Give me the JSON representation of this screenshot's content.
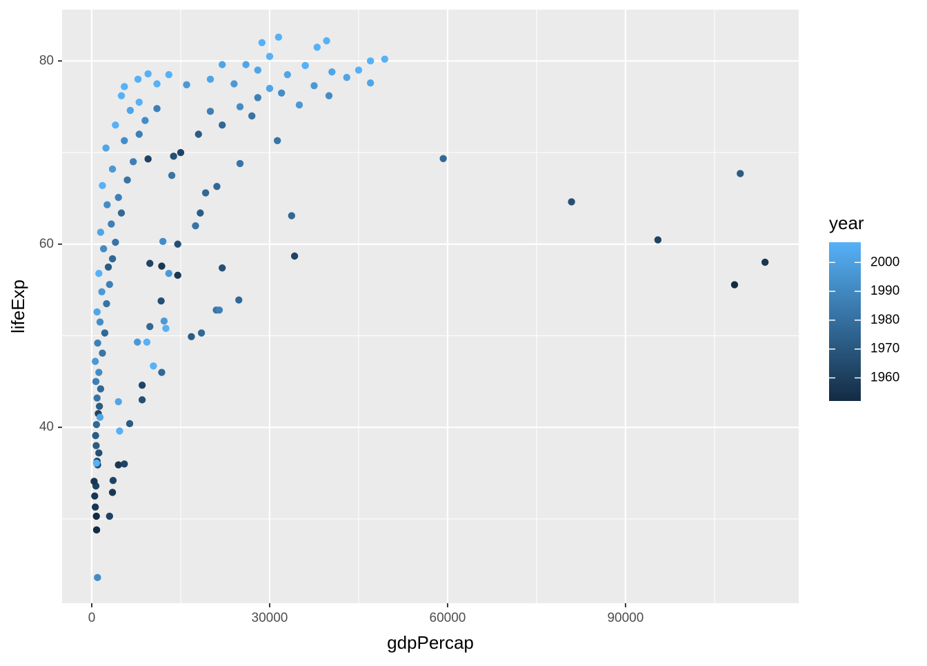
{
  "chart_data": {
    "type": "scatter",
    "x_label": "gdpPercap",
    "y_label": "lifeExp",
    "xlim": [
      -5000,
      119200
    ],
    "ylim": [
      20.8,
      85.6
    ],
    "xticks": [
      0,
      30000,
      60000,
      90000
    ],
    "yticks": [
      40,
      60,
      80
    ],
    "x_minor_grid": [
      15000,
      45000,
      75000,
      105000
    ],
    "y_minor_grid": [
      30,
      50,
      70
    ],
    "grid": true,
    "legend_title": "year",
    "color_low": "#132B43",
    "color_high": "#56B1F7",
    "color_lim": [
      1952,
      2007
    ],
    "color_ticks": [
      1960,
      1970,
      1980,
      1990,
      2000
    ],
    "x": [
      820,
      780,
      600,
      500,
      700,
      400,
      1000,
      900,
      1200,
      750,
      650,
      800,
      1100,
      1300,
      900,
      1500,
      700,
      1200,
      600,
      1800,
      1000,
      2200,
      1400,
      900,
      2500,
      1700,
      3000,
      1200,
      2800,
      3500,
      2000,
      4000,
      1500,
      3300,
      5000,
      2600,
      4500,
      1800,
      6000,
      3500,
      7000,
      2400,
      5500,
      8000,
      4000,
      9000,
      6500,
      11000,
      8000,
      5000,
      3000,
      3500,
      3600,
      4500,
      5500,
      6400,
      8500,
      8500,
      11800,
      10400,
      9300,
      7700,
      16800,
      18500,
      12500,
      9800,
      12200,
      21000,
      21500,
      24800,
      11700,
      14500,
      13000,
      22000,
      9800,
      11800,
      34200,
      14500,
      12000,
      17500,
      33700,
      18300,
      21100,
      19200,
      25000,
      13500,
      31300,
      9500,
      13800,
      15000,
      18000,
      22000,
      27000,
      20000,
      25000,
      28000,
      32000,
      35000,
      30000,
      24000,
      20000,
      33000,
      28000,
      36000,
      30000,
      38000,
      31500,
      39600,
      28700,
      47000,
      49400,
      45000,
      43000,
      40500,
      37500,
      40000,
      47000,
      26000,
      22000,
      16000,
      11000,
      9500,
      13000,
      7800,
      5500,
      59265,
      80895,
      95458,
      108382,
      109348,
      113523,
      974,
      1400,
      4500,
      4700,
      800
    ],
    "values": [
      28.8,
      30.3,
      31.3,
      32.5,
      33.6,
      34.1,
      35.9,
      36.3,
      37.2,
      38.0,
      39.1,
      40.3,
      41.5,
      42.3,
      43.2,
      44.2,
      45.0,
      46.0,
      47.2,
      48.1,
      49.2,
      50.3,
      51.5,
      52.6,
      53.5,
      54.8,
      55.6,
      56.8,
      57.5,
      58.4,
      59.5,
      60.2,
      61.3,
      62.2,
      63.4,
      64.3,
      65.1,
      66.4,
      67.0,
      68.2,
      69.0,
      70.5,
      71.3,
      72.0,
      73.0,
      73.5,
      74.6,
      74.8,
      75.5,
      76.2,
      30.3,
      32.9,
      34.2,
      35.9,
      36.0,
      40.4,
      43.0,
      44.6,
      46.0,
      46.7,
      49.3,
      49.3,
      49.9,
      50.3,
      50.8,
      51.0,
      51.6,
      52.8,
      52.8,
      53.9,
      53.8,
      56.6,
      56.8,
      57.4,
      57.9,
      57.6,
      58.7,
      60.0,
      60.3,
      62.0,
      63.1,
      63.4,
      66.3,
      65.6,
      68.8,
      67.5,
      71.3,
      69.3,
      69.6,
      70.0,
      72.0,
      73.0,
      74.0,
      74.5,
      75.0,
      76.0,
      76.5,
      75.2,
      77.0,
      77.5,
      78.0,
      78.5,
      79.0,
      79.5,
      80.5,
      81.5,
      82.6,
      82.2,
      82.0,
      80.0,
      80.2,
      79.0,
      78.2,
      78.8,
      77.3,
      76.2,
      77.6,
      79.6,
      79.6,
      77.4,
      77.5,
      78.6,
      78.5,
      78.0,
      77.2,
      69.34,
      64.62,
      60.47,
      55.57,
      67.71,
      58.03,
      23.6,
      41.1,
      42.8,
      39.6,
      36.1
    ],
    "years": [
      1952,
      1952,
      1957,
      1957,
      1962,
      1957,
      1967,
      1962,
      1967,
      1972,
      1972,
      1977,
      1962,
      1972,
      1982,
      1977,
      1987,
      1992,
      1997,
      1982,
      1987,
      1977,
      1992,
      2002,
      1982,
      1997,
      1987,
      2007,
      1972,
      1977,
      1992,
      1982,
      2002,
      1987,
      1977,
      1992,
      1987,
      2007,
      1982,
      1997,
      1987,
      2002,
      1992,
      1987,
      2007,
      1992,
      2002,
      1987,
      2007,
      2007,
      1962,
      1957,
      1962,
      1957,
      1962,
      1972,
      1967,
      1962,
      1977,
      2007,
      2007,
      1997,
      1972,
      1977,
      2007,
      1977,
      1997,
      1982,
      1987,
      1977,
      1967,
      1957,
      1997,
      1967,
      1962,
      1957,
      1962,
      1967,
      1992,
      1982,
      1977,
      1972,
      1977,
      1977,
      1982,
      1982,
      1982,
      1962,
      1967,
      1962,
      1972,
      1977,
      1982,
      1987,
      1992,
      1987,
      1992,
      1997,
      2002,
      1997,
      2002,
      2002,
      2002,
      2007,
      2007,
      2007,
      2007,
      2007,
      2007,
      2007,
      2007,
      2007,
      2002,
      2002,
      1997,
      1992,
      2002,
      2002,
      2002,
      1997,
      2007,
      2007,
      2007,
      2007,
      2007,
      1977,
      1967,
      1962,
      1952,
      1972,
      1957,
      1992,
      2002,
      2002,
      2007,
      2007
    ]
  }
}
